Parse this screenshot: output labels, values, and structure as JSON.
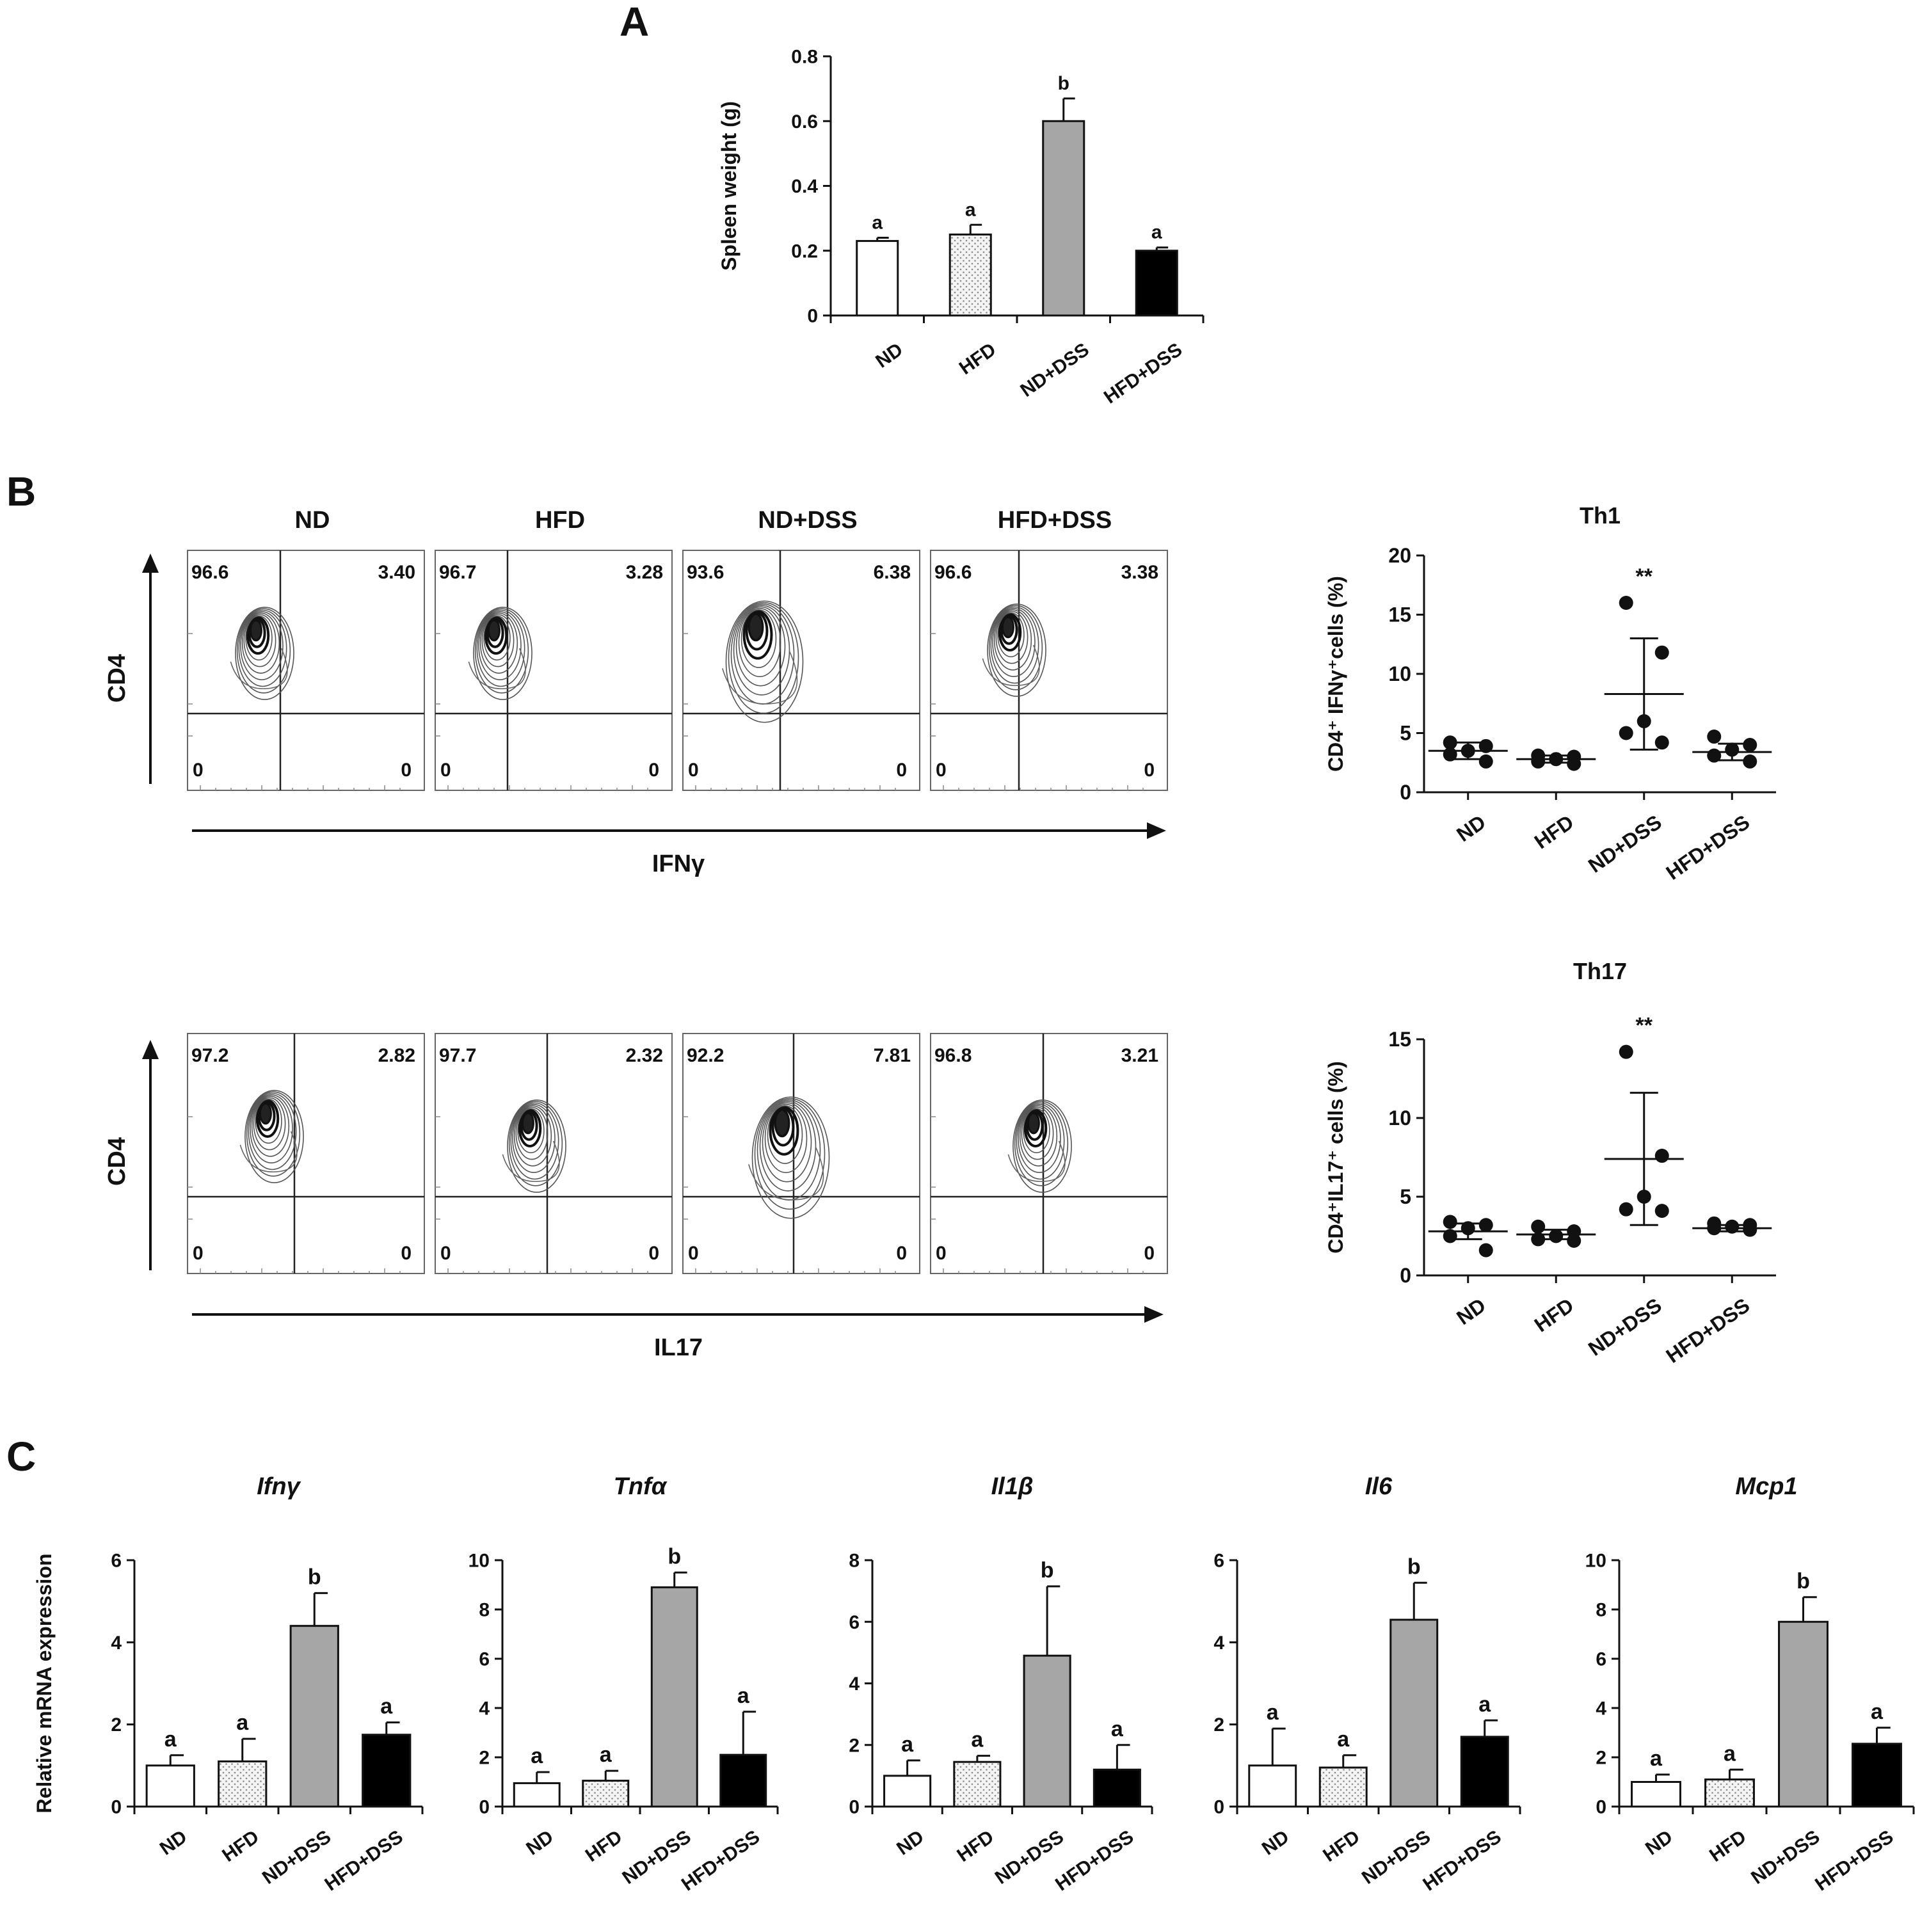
{
  "panel_labels": {
    "a": "A",
    "b": "B",
    "c": "C"
  },
  "colors": {
    "ND": "#ffffff",
    "HFD": "#f2f2f2",
    "ND+DSS": "#a6a6a6",
    "HFD+DSS": "#000000",
    "axis": "#111111",
    "contour": "#2b2b2b"
  },
  "flow": {
    "group_titles": [
      "ND",
      "HFD",
      "ND+DSS",
      "HFD+DSS"
    ],
    "rows": [
      {
        "y_axis": "CD4",
        "x_axis": "IFNγ",
        "quadrants": [
          {
            "ul": "96.6",
            "ur": "3.40",
            "ll": "0",
            "lr": "0"
          },
          {
            "ul": "96.7",
            "ur": "3.28",
            "ll": "0",
            "lr": "0"
          },
          {
            "ul": "93.6",
            "ur": "6.38",
            "ll": "0",
            "lr": "0"
          },
          {
            "ul": "96.6",
            "ur": "3.38",
            "ll": "0",
            "lr": "0"
          }
        ]
      },
      {
        "y_axis": "CD4",
        "x_axis": "IL17",
        "quadrants": [
          {
            "ul": "97.2",
            "ur": "2.82",
            "ll": "0",
            "lr": "0"
          },
          {
            "ul": "97.7",
            "ur": "2.32",
            "ll": "0",
            "lr": "0"
          },
          {
            "ul": "92.2",
            "ur": "7.81",
            "ll": "0",
            "lr": "0"
          },
          {
            "ul": "96.8",
            "ur": "3.21",
            "ll": "0",
            "lr": "0"
          }
        ]
      }
    ]
  },
  "chart_data": [
    {
      "id": "spleen",
      "type": "bar",
      "title": "",
      "ylabel": "Spleen weight (g)",
      "categories": [
        "ND",
        "HFD",
        "ND+DSS",
        "HFD+DSS"
      ],
      "values": [
        0.23,
        0.25,
        0.6,
        0.2
      ],
      "errors": [
        0.01,
        0.03,
        0.07,
        0.01
      ],
      "letters": [
        "a",
        "a",
        "b",
        "a"
      ],
      "ylim": [
        0,
        0.8
      ],
      "yticks": [
        0,
        0.2,
        0.4,
        0.6,
        0.8
      ],
      "ytick_labels": [
        "0",
        "0.2",
        "0.4",
        "0.6",
        "0.8"
      ]
    },
    {
      "id": "th1",
      "type": "scatter",
      "title": "Th1",
      "ylabel": "CD4⁺ IFNγ⁺cells (%)",
      "categories": [
        "ND",
        "HFD",
        "ND+DSS",
        "HFD+DSS"
      ],
      "points": [
        [
          4.2,
          3.9,
          3.5,
          3.2,
          2.6
        ],
        [
          3.1,
          3.0,
          2.8,
          2.6,
          2.4
        ],
        [
          16.0,
          11.8,
          6.0,
          5.0,
          4.2
        ],
        [
          4.7,
          4.0,
          3.6,
          3.1,
          2.6
        ]
      ],
      "means": [
        3.5,
        2.8,
        8.3,
        3.4
      ],
      "sem_upper": [
        4.2,
        3.1,
        13.0,
        4.1
      ],
      "sem_lower": [
        2.8,
        2.5,
        3.6,
        2.7
      ],
      "annotations": [
        "",
        "",
        "**",
        ""
      ],
      "ylim": [
        0,
        20
      ],
      "yticks": [
        0,
        5,
        10,
        15,
        20
      ],
      "ytick_labels": [
        "0",
        "5",
        "10",
        "15",
        "20"
      ]
    },
    {
      "id": "th17",
      "type": "scatter",
      "title": "Th17",
      "ylabel": "CD4⁺IL17⁺ cells (%)",
      "categories": [
        "ND",
        "HFD",
        "ND+DSS",
        "HFD+DSS"
      ],
      "points": [
        [
          3.4,
          3.2,
          3.0,
          2.5,
          1.6
        ],
        [
          3.1,
          2.8,
          2.5,
          2.3,
          2.2
        ],
        [
          14.2,
          7.6,
          5.0,
          4.2,
          4.1
        ],
        [
          3.3,
          3.2,
          3.1,
          3.0,
          2.9
        ]
      ],
      "means": [
        2.8,
        2.6,
        7.4,
        3.0
      ],
      "sem_upper": [
        3.3,
        2.9,
        11.6,
        3.2
      ],
      "sem_lower": [
        2.3,
        2.3,
        3.2,
        2.8
      ],
      "annotations": [
        "",
        "",
        "**",
        ""
      ],
      "ylim": [
        0,
        15
      ],
      "yticks": [
        0,
        5,
        10,
        15
      ],
      "ytick_labels": [
        "0",
        "5",
        "10",
        "15"
      ]
    },
    {
      "id": "ifng",
      "type": "bar",
      "title": "Ifnγ",
      "ylabel": "Relative mRNA expression",
      "categories": [
        "ND",
        "HFD",
        "ND+DSS",
        "HFD+DSS"
      ],
      "values": [
        1.0,
        1.1,
        4.4,
        1.75
      ],
      "errors": [
        0.25,
        0.55,
        0.8,
        0.3
      ],
      "letters": [
        "a",
        "a",
        "b",
        "a"
      ],
      "ylim": [
        0,
        6
      ],
      "yticks": [
        0,
        2,
        4,
        6
      ],
      "ytick_labels": [
        "0",
        "2",
        "4",
        "6"
      ]
    },
    {
      "id": "tnfa",
      "type": "bar",
      "title": "Tnfα",
      "ylabel": "",
      "categories": [
        "ND",
        "HFD",
        "ND+DSS",
        "HFD+DSS"
      ],
      "values": [
        0.95,
        1.05,
        8.9,
        2.1
      ],
      "errors": [
        0.45,
        0.4,
        0.6,
        1.75
      ],
      "letters": [
        "a",
        "a",
        "b",
        "a"
      ],
      "ylim": [
        0,
        10
      ],
      "yticks": [
        0,
        2,
        4,
        6,
        8,
        10
      ],
      "ytick_labels": [
        "0",
        "2",
        "4",
        "6",
        "8",
        "10"
      ]
    },
    {
      "id": "il1b",
      "type": "bar",
      "title": "Il1β",
      "ylabel": "",
      "categories": [
        "ND",
        "HFD",
        "ND+DSS",
        "HFD+DSS"
      ],
      "values": [
        1.0,
        1.45,
        4.9,
        1.2
      ],
      "errors": [
        0.5,
        0.2,
        2.25,
        0.8
      ],
      "letters": [
        "a",
        "a",
        "b",
        "a"
      ],
      "ylim": [
        0,
        8
      ],
      "yticks": [
        0,
        2,
        4,
        6,
        8
      ],
      "ytick_labels": [
        "0",
        "2",
        "4",
        "6",
        "8"
      ]
    },
    {
      "id": "il6",
      "type": "bar",
      "title": "Il6",
      "ylabel": "",
      "categories": [
        "ND",
        "HFD",
        "ND+DSS",
        "HFD+DSS"
      ],
      "values": [
        1.0,
        0.95,
        4.55,
        1.7
      ],
      "errors": [
        0.9,
        0.3,
        0.9,
        0.4
      ],
      "letters": [
        "a",
        "a",
        "b",
        "a"
      ],
      "ylim": [
        0,
        6
      ],
      "yticks": [
        0,
        2,
        4,
        6
      ],
      "ytick_labels": [
        "0",
        "2",
        "4",
        "6"
      ]
    },
    {
      "id": "mcp1",
      "type": "bar",
      "title": "Mcp1",
      "ylabel": "",
      "categories": [
        "ND",
        "HFD",
        "ND+DSS",
        "HFD+DSS"
      ],
      "values": [
        1.0,
        1.1,
        7.5,
        2.55
      ],
      "errors": [
        0.3,
        0.4,
        1.0,
        0.65
      ],
      "letters": [
        "a",
        "a",
        "b",
        "a"
      ],
      "ylim": [
        0,
        10
      ],
      "yticks": [
        0,
        2,
        4,
        6,
        8,
        10
      ],
      "ytick_labels": [
        "0",
        "2",
        "4",
        "6",
        "8",
        "10"
      ]
    }
  ]
}
